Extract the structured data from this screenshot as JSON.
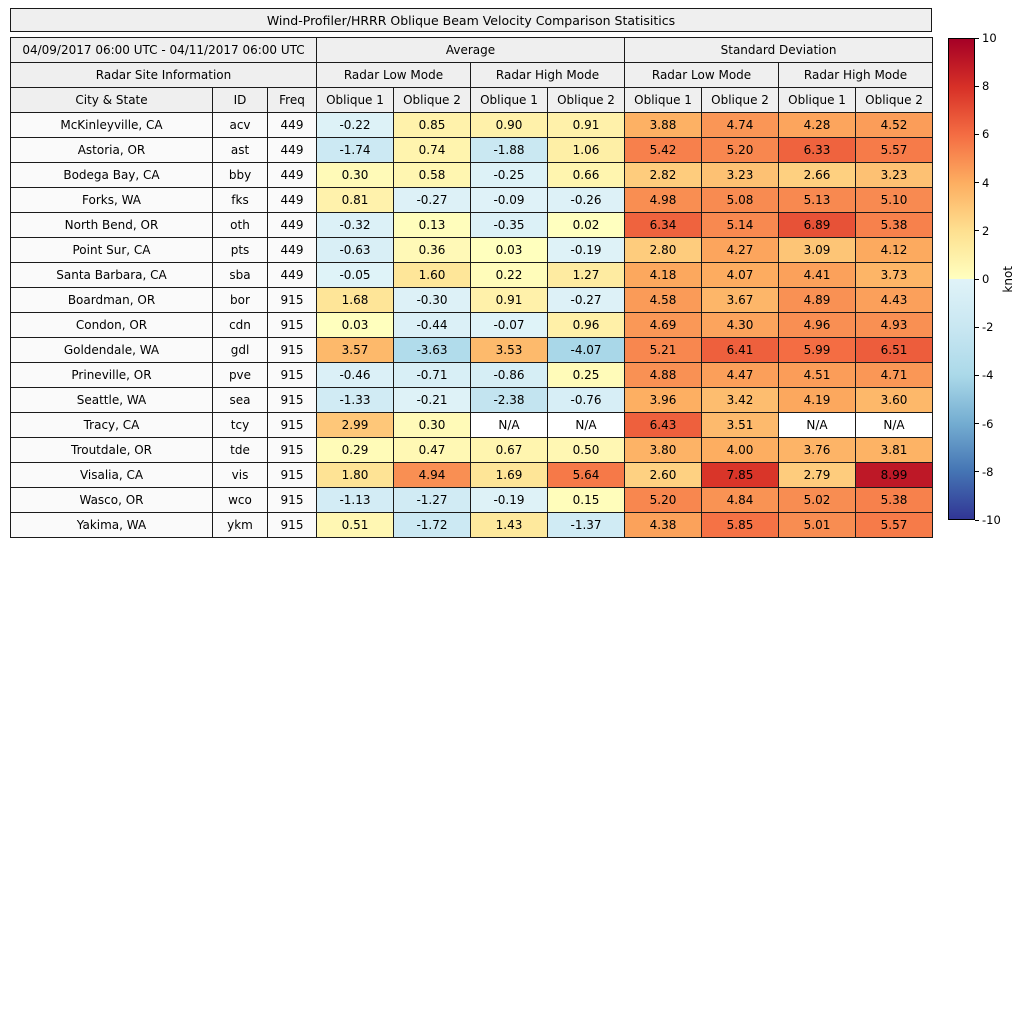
{
  "chart_data": {
    "type": "heatmap",
    "title": "Wind-Profiler/HRRR Oblique Beam Velocity Comparison Statisitics",
    "period": "04/09/2017 06:00 UTC - 04/11/2017 06:00 UTC",
    "group_headers": [
      "Average",
      "Standard Deviation"
    ],
    "site_info_header": "Radar Site Information",
    "mode_headers": [
      "Radar Low Mode",
      "Radar High Mode",
      "Radar Low Mode",
      "Radar High Mode"
    ],
    "column_headers": [
      "City & State",
      "ID",
      "Freq",
      "Oblique 1",
      "Oblique 2",
      "Oblique 1",
      "Oblique 2",
      "Oblique 1",
      "Oblique 2",
      "Oblique 1",
      "Oblique 2"
    ],
    "na_text": "N/A",
    "value_decimals": 2,
    "colorbar": {
      "label": "knot",
      "ticks": [
        10,
        8,
        6,
        4,
        2,
        0,
        -2,
        -4,
        -6,
        -8,
        -10
      ],
      "vmin": -10,
      "vmax": 10
    },
    "colormap": {
      "negative_stops": [
        [
          -10,
          "#313695"
        ],
        [
          -8,
          "#4575b4"
        ],
        [
          -6,
          "#74add1"
        ],
        [
          -4,
          "#abd9e9"
        ],
        [
          -2,
          "#c9e7f2"
        ],
        [
          0,
          "#e0f3f8"
        ]
      ],
      "positive_stops": [
        [
          0,
          "#ffffbf"
        ],
        [
          2,
          "#fee090"
        ],
        [
          4,
          "#fdae61"
        ],
        [
          6,
          "#f46d43"
        ],
        [
          8,
          "#d73027"
        ],
        [
          10,
          "#a50026"
        ]
      ],
      "na_color": "#ffffff"
    },
    "rows": [
      {
        "city": "McKinleyville, CA",
        "id": "acv",
        "freq": "449",
        "values": [
          -0.22,
          0.85,
          0.9,
          0.91,
          3.88,
          4.74,
          4.28,
          4.52
        ]
      },
      {
        "city": "Astoria, OR",
        "id": "ast",
        "freq": "449",
        "values": [
          -1.74,
          0.74,
          -1.88,
          1.06,
          5.42,
          5.2,
          6.33,
          5.57
        ]
      },
      {
        "city": "Bodega Bay, CA",
        "id": "bby",
        "freq": "449",
        "values": [
          0.3,
          0.58,
          -0.25,
          0.66,
          2.82,
          3.23,
          2.66,
          3.23
        ]
      },
      {
        "city": "Forks, WA",
        "id": "fks",
        "freq": "449",
        "values": [
          0.81,
          -0.27,
          -0.09,
          -0.26,
          4.98,
          5.08,
          5.13,
          5.1
        ]
      },
      {
        "city": "North Bend, OR",
        "id": "oth",
        "freq": "449",
        "values": [
          -0.32,
          0.13,
          -0.35,
          0.02,
          6.34,
          5.14,
          6.89,
          5.38
        ]
      },
      {
        "city": "Point Sur, CA",
        "id": "pts",
        "freq": "449",
        "values": [
          -0.63,
          0.36,
          0.03,
          -0.19,
          2.8,
          4.27,
          3.09,
          4.12
        ]
      },
      {
        "city": "Santa Barbara, CA",
        "id": "sba",
        "freq": "449",
        "values": [
          -0.05,
          1.6,
          0.22,
          1.27,
          4.18,
          4.07,
          4.41,
          3.73
        ]
      },
      {
        "city": "Boardman, OR",
        "id": "bor",
        "freq": "915",
        "values": [
          1.68,
          -0.3,
          0.91,
          -0.27,
          4.58,
          3.67,
          4.89,
          4.43
        ]
      },
      {
        "city": "Condon, OR",
        "id": "cdn",
        "freq": "915",
        "values": [
          0.03,
          -0.44,
          -0.07,
          0.96,
          4.69,
          4.3,
          4.96,
          4.93
        ]
      },
      {
        "city": "Goldendale, WA",
        "id": "gdl",
        "freq": "915",
        "values": [
          3.57,
          -3.63,
          3.53,
          -4.07,
          5.21,
          6.41,
          5.99,
          6.51
        ]
      },
      {
        "city": "Prineville, OR",
        "id": "pve",
        "freq": "915",
        "values": [
          -0.46,
          -0.71,
          -0.86,
          0.25,
          4.88,
          4.47,
          4.51,
          4.71
        ]
      },
      {
        "city": "Seattle, WA",
        "id": "sea",
        "freq": "915",
        "values": [
          -1.33,
          -0.21,
          -2.38,
          -0.76,
          3.96,
          3.42,
          4.19,
          3.6
        ]
      },
      {
        "city": "Tracy, CA",
        "id": "tcy",
        "freq": "915",
        "values": [
          2.99,
          0.3,
          null,
          null,
          6.43,
          3.51,
          null,
          null
        ]
      },
      {
        "city": "Troutdale, OR",
        "id": "tde",
        "freq": "915",
        "values": [
          0.29,
          0.47,
          0.67,
          0.5,
          3.8,
          4.0,
          3.76,
          3.81
        ]
      },
      {
        "city": "Visalia, CA",
        "id": "vis",
        "freq": "915",
        "values": [
          1.8,
          4.94,
          1.69,
          5.64,
          2.6,
          7.85,
          2.79,
          8.99
        ]
      },
      {
        "city": "Wasco, OR",
        "id": "wco",
        "freq": "915",
        "values": [
          -1.13,
          -1.27,
          -0.19,
          0.15,
          5.2,
          4.84,
          5.02,
          5.38
        ]
      },
      {
        "city": "Yakima, WA",
        "id": "ykm",
        "freq": "915",
        "values": [
          0.51,
          -1.72,
          1.43,
          -1.37,
          4.38,
          5.85,
          5.01,
          5.57
        ]
      }
    ]
  },
  "styles": {
    "header_bg": "#efefef",
    "label_cell_bg": "#fafafa",
    "border_color": "#1a1a1a"
  }
}
